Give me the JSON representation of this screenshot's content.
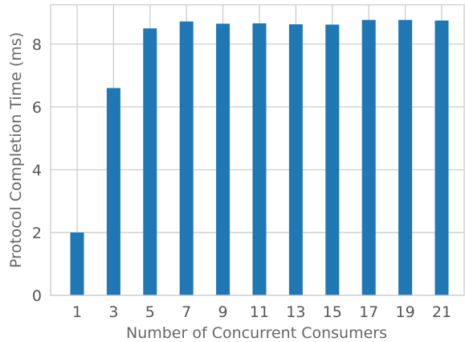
{
  "chart_data": {
    "type": "bar",
    "xlabel": "Number of Concurrent Consumers",
    "ylabel": "Protocol Completion Time (ms)",
    "categories": [
      "1",
      "3",
      "5",
      "7",
      "9",
      "11",
      "13",
      "15",
      "17",
      "19",
      "21"
    ],
    "values": [
      2.0,
      6.6,
      8.5,
      8.72,
      8.65,
      8.66,
      8.63,
      8.62,
      8.77,
      8.77,
      8.75
    ],
    "ylim": [
      0,
      9.25
    ],
    "yticks": [
      0,
      2,
      4,
      6,
      8
    ],
    "grid": true,
    "legend": "none",
    "colors": {
      "bar": "#1f77b4",
      "grid": "#cccccc",
      "spine": "#cccccc"
    }
  }
}
